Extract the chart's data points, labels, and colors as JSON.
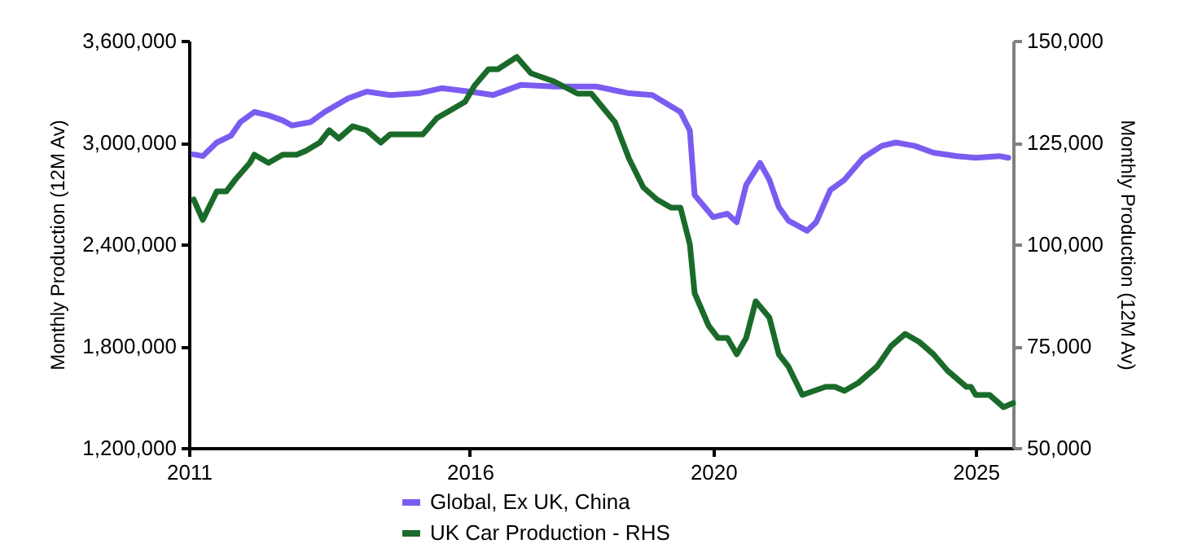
{
  "chart_data": {
    "type": "line",
    "ylabel": "Monthly Production (12M Av)",
    "y2label": "Monthly Production (12M Av)",
    "xlim": [
      "2011-01",
      "2025-09"
    ],
    "xticks": [
      {
        "value": "2011-01",
        "label": "2011"
      },
      {
        "value": "2016-01",
        "label": "2016"
      },
      {
        "value": "2020-05",
        "label": "2020"
      },
      {
        "value": "2025-01",
        "label": "2025"
      }
    ],
    "ylim": [
      1200000,
      3600000
    ],
    "yticks": [
      {
        "value": 1200000,
        "label": "1,200,000"
      },
      {
        "value": 1800000,
        "label": "1,800,000"
      },
      {
        "value": 2400000,
        "label": "2,400,000"
      },
      {
        "value": 3000000,
        "label": "3,000,000"
      },
      {
        "value": 3600000,
        "label": "3,600,000"
      }
    ],
    "y2lim": [
      50000,
      150000
    ],
    "y2ticks": [
      {
        "value": 50000,
        "label": "50,000"
      },
      {
        "value": 75000,
        "label": "75,000"
      },
      {
        "value": 100000,
        "label": "100,000"
      },
      {
        "value": 125000,
        "label": "125,000"
      },
      {
        "value": 150000,
        "label": "150,000"
      }
    ],
    "grid": false,
    "legend": "bottom",
    "marker": "none",
    "line_style": "solid",
    "series": [
      {
        "name": "Global, Ex UK, China",
        "color": "#7b5cf0",
        "x": [
          "2011-02",
          "2011-04",
          "2011-07",
          "2011-10",
          "2011-12",
          "2012-03",
          "2012-06",
          "2012-09",
          "2012-11",
          "2013-03",
          "2013-06",
          "2013-11",
          "2014-03",
          "2014-08",
          "2015-02",
          "2015-07",
          "2016-01",
          "2016-06",
          "2016-12",
          "2017-07",
          "2018-04",
          "2018-11",
          "2019-04",
          "2019-10",
          "2019-12",
          "2020-01",
          "2020-05",
          "2020-08",
          "2020-10",
          "2020-12",
          "2021-03",
          "2021-05",
          "2021-07",
          "2021-09",
          "2022-01",
          "2022-03",
          "2022-06",
          "2022-09",
          "2023-01",
          "2023-05",
          "2023-08",
          "2023-12",
          "2024-04",
          "2024-09",
          "2025-01",
          "2025-06",
          "2025-08"
        ],
        "values": [
          2930000,
          2920000,
          3000000,
          3040000,
          3120000,
          3180000,
          3160000,
          3130000,
          3100000,
          3120000,
          3180000,
          3260000,
          3300000,
          3280000,
          3290000,
          3320000,
          3300000,
          3280000,
          3340000,
          3330000,
          3330000,
          3290000,
          3280000,
          3180000,
          3070000,
          2690000,
          2560000,
          2580000,
          2530000,
          2750000,
          2880000,
          2780000,
          2620000,
          2540000,
          2480000,
          2530000,
          2720000,
          2780000,
          2910000,
          2980000,
          3000000,
          2980000,
          2940000,
          2920000,
          2910000,
          2920000,
          2910000
        ]
      },
      {
        "name": "UK Car Production - RHS",
        "color": "#1a6b2a",
        "axis": "y2",
        "x": [
          "2011-02",
          "2011-04",
          "2011-07",
          "2011-09",
          "2011-11",
          "2012-02",
          "2012-03",
          "2012-06",
          "2012-09",
          "2012-12",
          "2013-02",
          "2013-05",
          "2013-07",
          "2013-09",
          "2013-12",
          "2014-03",
          "2014-06",
          "2014-08",
          "2015-03",
          "2015-06",
          "2015-09",
          "2015-12",
          "2016-02",
          "2016-05",
          "2016-07",
          "2016-11",
          "2017-02",
          "2017-07",
          "2017-12",
          "2018-03",
          "2018-08",
          "2018-11",
          "2019-02",
          "2019-05",
          "2019-08",
          "2019-10",
          "2019-12",
          "2020-01",
          "2020-04",
          "2020-06",
          "2020-08",
          "2020-10",
          "2020-12",
          "2021-02",
          "2021-05",
          "2021-07",
          "2021-09",
          "2021-12",
          "2022-05",
          "2022-07",
          "2022-09",
          "2022-12",
          "2023-04",
          "2023-07",
          "2023-10",
          "2024-01",
          "2024-04",
          "2024-07",
          "2024-11",
          "2024-12",
          "2025-01",
          "2025-04",
          "2025-07",
          "2025-09"
        ],
        "values": [
          111000,
          106000,
          113000,
          113000,
          116000,
          120000,
          122000,
          120000,
          122000,
          122000,
          123000,
          125000,
          128000,
          126000,
          129000,
          128000,
          125000,
          127000,
          127000,
          131000,
          133000,
          135000,
          139000,
          143000,
          143000,
          146000,
          142000,
          140000,
          137000,
          137000,
          130000,
          121000,
          114000,
          111000,
          109000,
          109000,
          100000,
          88000,
          80000,
          77000,
          77000,
          73000,
          77000,
          86000,
          82000,
          73000,
          70000,
          63000,
          65000,
          65000,
          64000,
          66000,
          70000,
          75000,
          78000,
          76000,
          73000,
          69000,
          65000,
          65000,
          63000,
          63000,
          60000,
          61000
        ]
      }
    ]
  }
}
